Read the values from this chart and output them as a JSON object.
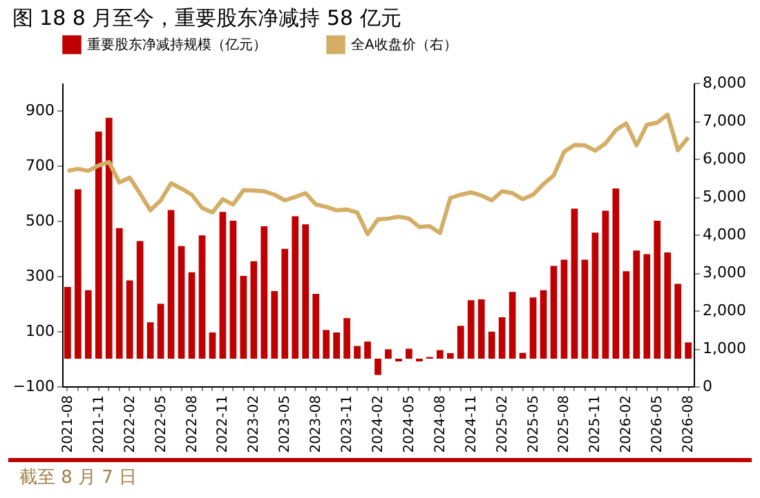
{
  "chart_data": {
    "type": "bar",
    "title": "图 18 8 月至今，重要股东净减持 58 亿元",
    "categories": [
      "2021-08",
      null,
      null,
      "2021-11",
      null,
      null,
      "2022-02",
      null,
      null,
      "2022-05",
      null,
      null,
      "2022-08",
      null,
      null,
      "2022-11",
      null,
      null,
      "2023-02",
      null,
      null,
      "2023-05",
      null,
      null,
      "2023-08",
      null,
      null,
      "2023-11",
      null,
      null,
      "2024-02",
      null,
      null,
      "2024-05",
      null,
      null,
      "2024-08",
      null,
      null,
      "2024-11",
      null,
      null,
      "2025-02",
      null,
      null,
      "2025-05",
      null,
      null,
      "2025-08",
      null,
      null,
      "2025-11",
      null,
      null,
      "2026-02",
      null,
      null,
      "2026-05",
      null,
      null,
      "2026-08"
    ],
    "series": [
      {
        "name": "重要股东净减持规模（亿元）",
        "color": "#c00000",
        "values": [
          260,
          614,
          248,
          823,
          873,
          473,
          284,
          426,
          132,
          199,
          539,
          408,
          313,
          447,
          95,
          532,
          500,
          300,
          353,
          480,
          245,
          398,
          516,
          487,
          235,
          104,
          95,
          147,
          46,
          62,
          -59,
          34,
          -10,
          36,
          -10,
          6,
          31,
          20,
          119,
          212,
          215,
          98,
          150,
          242,
          21,
          222,
          248,
          336,
          359,
          544,
          359,
          457,
          536,
          617,
          317,
          392,
          379,
          500,
          385,
          271,
          59
        ]
      },
      {
        "name": "全A收盘价（右）",
        "type": "line",
        "axis": "y2",
        "color": "#d4ae66",
        "values": [
          5680,
          5730,
          5680,
          5820,
          5910,
          5370,
          5500,
          5080,
          4640,
          4900,
          5350,
          5210,
          5050,
          4700,
          4580,
          4930,
          4790,
          5170,
          5160,
          5140,
          5050,
          4900,
          4990,
          5090,
          4790,
          4730,
          4640,
          4660,
          4580,
          4010,
          4400,
          4420,
          4470,
          4420,
          4200,
          4220,
          4040,
          4960,
          5050,
          5110,
          5030,
          4900,
          5140,
          5090,
          4930,
          5050,
          5330,
          5560,
          6180,
          6360,
          6350,
          6210,
          6400,
          6750,
          6930,
          6350,
          6890,
          6950,
          7160,
          6220,
          6560
        ]
      }
    ],
    "ylim": [
      -100,
      1000
    ],
    "yticks": [
      -100,
      100,
      300,
      500,
      700,
      900
    ],
    "y2lim": [
      0,
      8000
    ],
    "y2ticks": [
      0,
      {
        "value": 1000,
        "label": "1,000"
      },
      {
        "value": 2000,
        "label": "2,000"
      },
      {
        "value": 3000,
        "label": "3,000"
      },
      {
        "value": 4000,
        "label": "4,000"
      },
      {
        "value": 5000,
        "label": "5,000"
      },
      {
        "value": 6000,
        "label": "6,000"
      },
      {
        "value": 7000,
        "label": "7,000"
      },
      {
        "value": 8000,
        "label": "8,000"
      }
    ],
    "grid": false,
    "legend": "top",
    "annotations": [
      "截至 8 月 7 日"
    ]
  }
}
